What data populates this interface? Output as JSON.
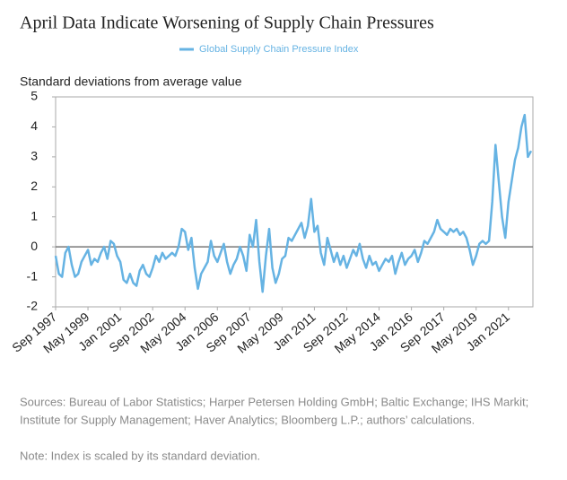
{
  "chart_data": {
    "type": "line",
    "title": "April Data Indicate Worsening of Supply Chain Pressures",
    "ylabel": "Standard deviations from average value",
    "series": [
      {
        "name": "Global Supply Chain Pressure Index",
        "color": "#66b3e3",
        "values": [
          -0.3,
          -0.9,
          -1.0,
          -0.2,
          0.0,
          -0.6,
          -1.0,
          -0.9,
          -0.5,
          -0.3,
          -0.1,
          -0.6,
          -0.4,
          -0.5,
          -0.2,
          0.0,
          -0.4,
          0.2,
          0.1,
          -0.3,
          -0.5,
          -1.1,
          -1.2,
          -0.9,
          -1.2,
          -1.3,
          -0.8,
          -0.6,
          -0.9,
          -1.0,
          -0.7,
          -0.3,
          -0.5,
          -0.2,
          -0.4,
          -0.3,
          -0.2,
          -0.3,
          0.0,
          0.6,
          0.5,
          -0.1,
          0.3,
          -0.7,
          -1.4,
          -0.9,
          -0.7,
          -0.5,
          0.2,
          -0.3,
          -0.5,
          -0.2,
          0.1,
          -0.5,
          -0.9,
          -0.6,
          -0.4,
          0.0,
          -0.3,
          -0.8,
          0.4,
          0.0,
          0.9,
          -0.5,
          -1.5,
          -0.3,
          0.6,
          -0.7,
          -1.2,
          -0.9,
          -0.4,
          -0.3,
          0.3,
          0.2,
          0.4,
          0.6,
          0.8,
          0.3,
          0.7,
          1.6,
          0.5,
          0.7,
          -0.2,
          -0.6,
          0.3,
          -0.1,
          -0.5,
          -0.2,
          -0.6,
          -0.3,
          -0.7,
          -0.4,
          -0.1,
          -0.3,
          0.1,
          -0.4,
          -0.7,
          -0.3,
          -0.6,
          -0.5,
          -0.8,
          -0.6,
          -0.4,
          -0.5,
          -0.3,
          -0.9,
          -0.5,
          -0.2,
          -0.6,
          -0.4,
          -0.3,
          -0.1,
          -0.5,
          -0.2,
          0.2,
          0.1,
          0.3,
          0.5,
          0.9,
          0.6,
          0.5,
          0.4,
          0.6,
          0.5,
          0.6,
          0.4,
          0.5,
          0.3,
          -0.1,
          -0.6,
          -0.3,
          0.1,
          0.2,
          0.1,
          0.2,
          1.5,
          3.4,
          2.2,
          1.0,
          0.3,
          1.5,
          2.2,
          2.9,
          3.3,
          4.0,
          4.4,
          3.0,
          3.2
        ]
      }
    ],
    "x": [
      "Sep 1997",
      "Nov 1997",
      "Jan 1998",
      "Mar 1998",
      "May 1998",
      "Jul 1998",
      "Sep 1998",
      "Nov 1998",
      "Jan 1999",
      "Mar 1999",
      "May 1999",
      "Jul 1999",
      "Sep 1999",
      "Nov 1999",
      "Jan 2000",
      "Mar 2000",
      "May 2000",
      "Jul 2000",
      "Sep 2000",
      "Nov 2000",
      "Jan 2001",
      "Mar 2001",
      "May 2001",
      "Jul 2001",
      "Sep 2001",
      "Nov 2001",
      "Jan 2002",
      "Mar 2002",
      "May 2002",
      "Jul 2002",
      "Sep 2002",
      "Nov 2002",
      "Jan 2003",
      "Mar 2003",
      "May 2003",
      "Jul 2003",
      "Sep 2003",
      "Nov 2003",
      "Jan 2004",
      "Mar 2004",
      "May 2004",
      "Jul 2004",
      "Sep 2004",
      "Nov 2004",
      "Jan 2005",
      "Mar 2005",
      "May 2005",
      "Jul 2005",
      "Sep 2005",
      "Nov 2005",
      "Jan 2006",
      "Mar 2006",
      "May 2006",
      "Jul 2006",
      "Sep 2006",
      "Nov 2006",
      "Jan 2007",
      "Mar 2007",
      "May 2007",
      "Jul 2007",
      "Sep 2007",
      "Nov 2007",
      "Jan 2008",
      "Mar 2008",
      "May 2008",
      "Jul 2008",
      "Sep 2008",
      "Nov 2008",
      "Jan 2009",
      "Mar 2009",
      "May 2009",
      "Jul 2009",
      "Sep 2009",
      "Nov 2009",
      "Jan 2010",
      "Mar 2010",
      "May 2010",
      "Jul 2010",
      "Sep 2010",
      "Nov 2010",
      "Jan 2011",
      "Mar 2011",
      "May 2011",
      "Jul 2011",
      "Sep 2011",
      "Nov 2011",
      "Jan 2012",
      "Mar 2012",
      "May 2012",
      "Jul 2012",
      "Sep 2012",
      "Nov 2012",
      "Jan 2013",
      "Mar 2013",
      "May 2013",
      "Jul 2013",
      "Sep 2013",
      "Nov 2013",
      "Jan 2014",
      "Mar 2014",
      "May 2014",
      "Jul 2014",
      "Sep 2014",
      "Nov 2014",
      "Jan 2015",
      "Mar 2015",
      "May 2015",
      "Jul 2015",
      "Sep 2015",
      "Nov 2015",
      "Jan 2016",
      "Mar 2016",
      "May 2016",
      "Jul 2016",
      "Sep 2016",
      "Nov 2016",
      "Jan 2017",
      "Mar 2017",
      "May 2017",
      "Jul 2017",
      "Sep 2017",
      "Nov 2017",
      "Jan 2018",
      "Mar 2018",
      "May 2018",
      "Jul 2018",
      "Sep 2018",
      "Nov 2018",
      "Jan 2019",
      "Mar 2019",
      "May 2019",
      "Jul 2019",
      "Sep 2019",
      "Nov 2019",
      "Jan 2020",
      "Mar 2020",
      "May 2020",
      "Jul 2020",
      "Sep 2020",
      "Nov 2020",
      "Jan 2021",
      "Mar 2021",
      "May 2021",
      "Jul 2021",
      "Sep 2021",
      "Nov 2021",
      "Jan 2022",
      "Mar 2022"
    ],
    "xticks": [
      "Sep 1997",
      "May 1999",
      "Jan 2001",
      "Sep 2002",
      "May 2004",
      "Jan 2006",
      "Sep 2007",
      "May 2009",
      "Jan 2011",
      "Sep 2012",
      "May 2014",
      "Jan 2016",
      "Sep 2017",
      "May 2019",
      "Jan 2021"
    ],
    "ylim": [
      -2,
      5
    ],
    "yticks": [
      -2,
      -1,
      0,
      1,
      2,
      3,
      4,
      5
    ],
    "zero_line": true,
    "sources": [
      "Sources: Bureau of Labor Statistics; Harper Petersen Holding GmbH; Baltic Exchange; IHS Markit;",
      "Institute for Supply Management; Haver Analytics; Bloomberg L.P.; authors’ calculations."
    ],
    "note": "Note: Index is scaled by its standard deviation."
  }
}
